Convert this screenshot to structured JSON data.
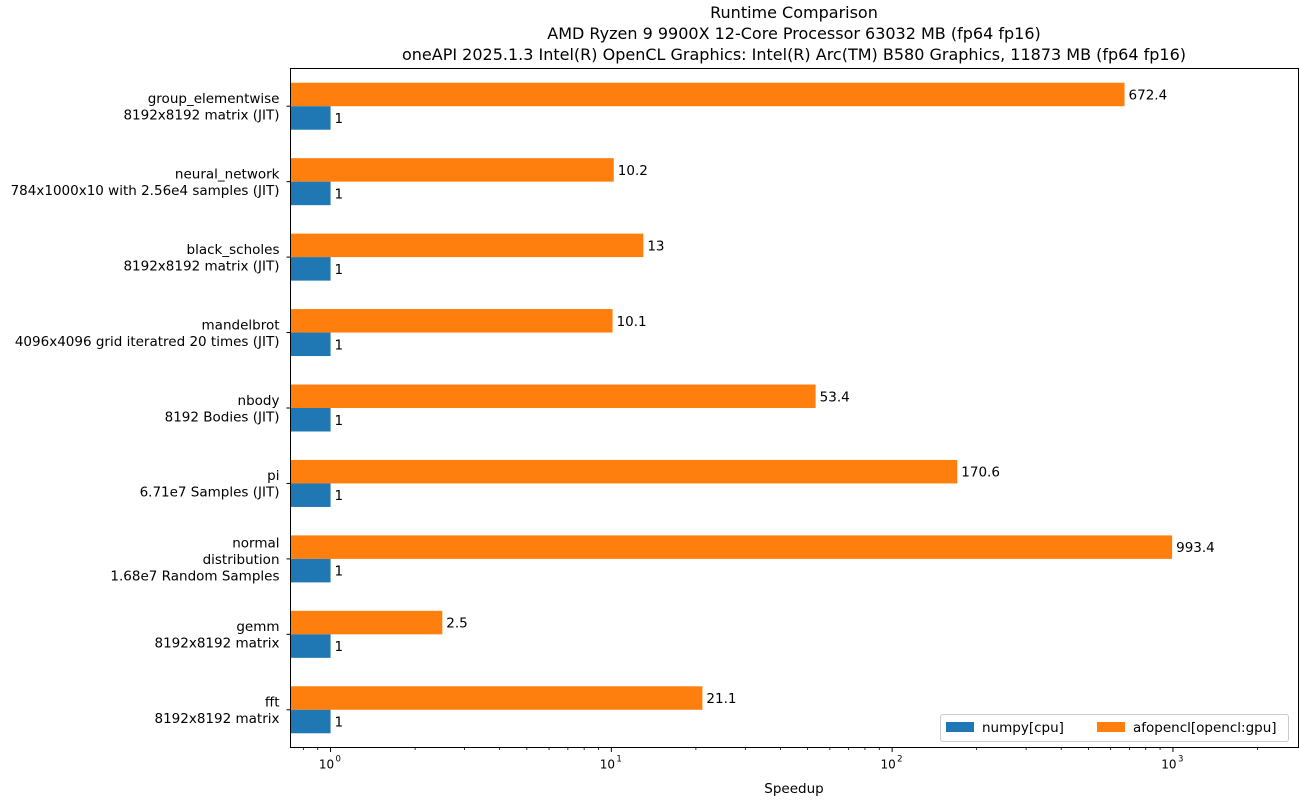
{
  "chart_data": {
    "type": "bar",
    "orientation": "horizontal",
    "title_lines": [
      "Runtime Comparison",
      "AMD Ryzen 9 9900X 12-Core Processor 63032 MB (fp64 fp16)",
      "oneAPI 2025.1.3 Intel(R) OpenCL Graphics: Intel(R) Arc(TM) B580 Graphics, 11873 MB (fp64 fp16)"
    ],
    "xlabel": "Speedup",
    "ylabel": "",
    "xscale": "log",
    "xlim": [
      0.72,
      2800
    ],
    "xticks": [
      {
        "base": "10",
        "exp": "0",
        "value": 1
      },
      {
        "base": "10",
        "exp": "1",
        "value": 10
      },
      {
        "base": "10",
        "exp": "2",
        "value": 100
      },
      {
        "base": "10",
        "exp": "3",
        "value": 1000
      }
    ],
    "grid": false,
    "legend_position": "bottom-right",
    "categories": [
      {
        "lines": [
          "group_elementwise",
          "8192x8192 matrix (JIT)"
        ]
      },
      {
        "lines": [
          "neural_network",
          "784x1000x10 with 2.56e4 samples (JIT)"
        ]
      },
      {
        "lines": [
          "black_scholes",
          "8192x8192 matrix (JIT)"
        ]
      },
      {
        "lines": [
          "mandelbrot",
          "4096x4096 grid iteratred 20 times (JIT)"
        ]
      },
      {
        "lines": [
          "nbody",
          "8192 Bodies (JIT)"
        ]
      },
      {
        "lines": [
          "pi",
          "6.71e7 Samples (JIT)"
        ]
      },
      {
        "lines": [
          "normal",
          "distribution",
          "1.68e7 Random Samples"
        ]
      },
      {
        "lines": [
          "gemm",
          "8192x8192 matrix"
        ]
      },
      {
        "lines": [
          "fft",
          "8192x8192 matrix"
        ]
      }
    ],
    "series": [
      {
        "name": "numpy[cpu]",
        "color": "#1f77b4",
        "values": [
          1,
          1,
          1,
          1,
          1,
          1,
          1,
          1,
          1
        ],
        "labels": [
          "1",
          "1",
          "1",
          "1",
          "1",
          "1",
          "1",
          "1",
          "1"
        ]
      },
      {
        "name": "afopencl[opencl:gpu]",
        "color": "#ff7f0e",
        "values": [
          672.4,
          10.2,
          13,
          10.1,
          53.4,
          170.6,
          993.4,
          2.5,
          21.1
        ],
        "labels": [
          "672.4",
          "10.2",
          "13",
          "10.1",
          "53.4",
          "170.6",
          "993.4",
          "2.5",
          "21.1"
        ]
      }
    ]
  }
}
